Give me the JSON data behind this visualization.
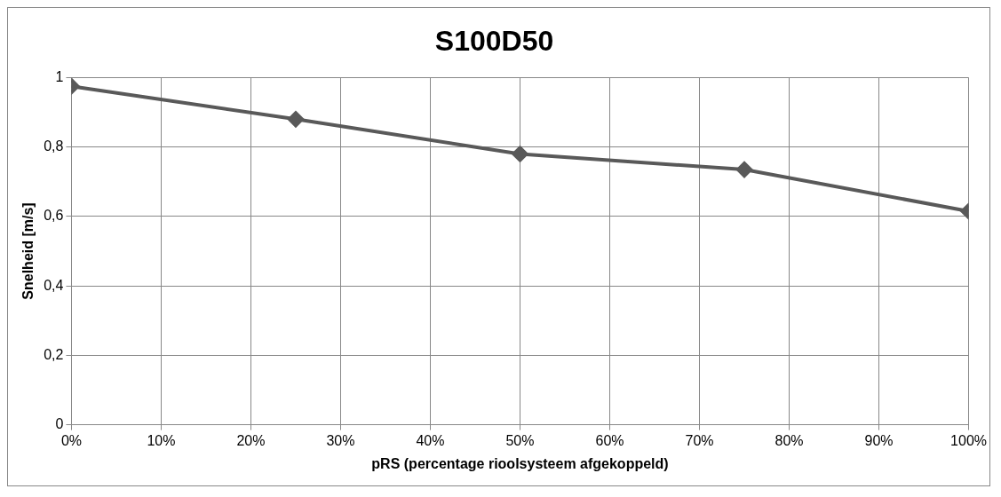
{
  "chart_data": {
    "type": "line",
    "title": "S100D50",
    "xlabel": "pRS (percentage rioolsysteem afgekoppeld)",
    "ylabel": "Snelheid [m/s]",
    "x": [
      0,
      25,
      50,
      75,
      100
    ],
    "series": [
      {
        "color": "#595959",
        "values": [
          0.975,
          0.88,
          0.78,
          0.735,
          0.615
        ]
      }
    ],
    "xlim": [
      0,
      100
    ],
    "xticks": [
      {
        "value": 0,
        "label": "0%"
      },
      {
        "value": 10,
        "label": "10%"
      },
      {
        "value": 20,
        "label": "20%"
      },
      {
        "value": 30,
        "label": "30%"
      },
      {
        "value": 40,
        "label": "40%"
      },
      {
        "value": 50,
        "label": "50%"
      },
      {
        "value": 60,
        "label": "60%"
      },
      {
        "value": 70,
        "label": "70%"
      },
      {
        "value": 80,
        "label": "80%"
      },
      {
        "value": 90,
        "label": "90%"
      },
      {
        "value": 100,
        "label": "100%"
      }
    ],
    "ylim": [
      0,
      1
    ],
    "yticks": [
      0,
      {
        "value": 0.2,
        "label": "0,2"
      },
      {
        "value": 0.4,
        "label": "0,4"
      },
      {
        "value": 0.6,
        "label": "0,6"
      },
      {
        "value": 0.8,
        "label": "0,8"
      },
      1
    ],
    "grid": true,
    "marker": "diamond",
    "line_style": "solid",
    "legend": false
  }
}
